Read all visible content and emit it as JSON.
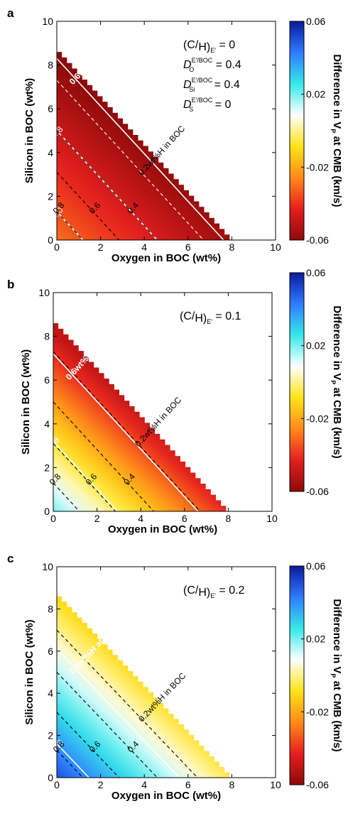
{
  "chart_data": [
    {
      "type": "heatmap",
      "panel_label": "a",
      "xlabel": "Oxygen in BOC (wt%)",
      "ylabel": "Silicon in BOC (wt%)",
      "xlim": [
        0,
        10
      ],
      "ylim": [
        0,
        10
      ],
      "x_ticks": [
        "0",
        "2",
        "4",
        "6",
        "8",
        "10"
      ],
      "y_ticks": [
        "0",
        "2",
        "4",
        "6",
        "8",
        "10"
      ],
      "colorbar": {
        "label": "Difference in Vp at CMB (km/s)",
        "label_main": "Difference in V",
        "label_sub": "P",
        "label_tail": " at CMB (km/s)",
        "range": [
          -0.06,
          0.06
        ],
        "ticks": [
          "0.06",
          "0.02",
          "-0.02",
          "-0.06"
        ],
        "colors": [
          "#0a1a9c",
          "#2f7bff",
          "#36e8e8",
          "#ffffff",
          "#ffe31a",
          "#ff8a1a",
          "#e61e1e",
          "#8c0a0a"
        ]
      },
      "region_boundary": {
        "si_at_o0": 8.6,
        "o_at_si0": 7.9
      },
      "conditions": [
        "(C/H)E' = 0",
        "D O E'/BOC = 0.4",
        "D Si E'/BOC = 0.4",
        "D S E'/BOC = 0"
      ],
      "conditions_text": {
        "ratio_value": " = 0",
        "do_value": " = 0.4",
        "dsi_value": " = 0.4",
        "ds_value": " = 0"
      },
      "contours_white": [
        {
          "label": "0.6wt%H at CMB",
          "si0": 8.3
        },
        {
          "label": "0.8",
          "si0": 5.0
        },
        {
          "label": "1.0",
          "si0": 1.3
        }
      ],
      "contours_black": [
        {
          "label": "0.2wt%H in BOC",
          "si0": 7.3
        },
        {
          "label": "0.4",
          "si0": 5.0
        },
        {
          "label": "0.6",
          "si0": 3.1
        },
        {
          "label": "0.8",
          "si0": 1.3
        }
      ],
      "corner_value_at_origin": -0.03,
      "edge_value": -0.06
    },
    {
      "type": "heatmap",
      "panel_label": "b",
      "xlabel": "Oxygen in BOC (wt%)",
      "ylabel": "Silicon in BOC (wt%)",
      "xlim": [
        0,
        10
      ],
      "ylim": [
        0,
        10
      ],
      "x_ticks": [
        "0",
        "2",
        "4",
        "6",
        "8",
        "10"
      ],
      "y_ticks": [
        "0",
        "2",
        "4",
        "6",
        "8",
        "10"
      ],
      "colorbar": {
        "label": "Difference in Vp at CMB (km/s)",
        "label_main": "Difference in V",
        "label_sub": "P",
        "label_tail": " at CMB (km/s)",
        "range": [
          -0.06,
          0.06
        ],
        "ticks": [
          "0.06",
          "0.02",
          "-0.02",
          "-0.06"
        ],
        "colors": [
          "#0a1a9c",
          "#2f7bff",
          "#36e8e8",
          "#ffffff",
          "#ffe31a",
          "#ff8a1a",
          "#e61e1e",
          "#8c0a0a"
        ]
      },
      "region_boundary": {
        "si_at_o0": 8.6,
        "o_at_si0": 7.9
      },
      "conditions": [
        "(C/H)E' = 0.1"
      ],
      "conditions_text": {
        "ratio_value": " = 0.1"
      },
      "contours_white": [
        {
          "label": "0.6wt%H at CMB",
          "si0": 7.2
        },
        {
          "label": "0.8",
          "si0": 3.2
        }
      ],
      "contours_black": [
        {
          "label": "0.2wt%H in BOC",
          "si0": 7.3
        },
        {
          "label": "0.4",
          "si0": 5.0
        },
        {
          "label": "0.6",
          "si0": 3.1
        },
        {
          "label": "0.8",
          "si0": 1.3
        }
      ],
      "corner_value_at_origin": 0.02,
      "edge_value": -0.05
    },
    {
      "type": "heatmap",
      "panel_label": "c",
      "xlabel": "Oxygen in BOC (wt%)",
      "ylabel": "Silicon in BOC (wt%)",
      "xlim": [
        0,
        10
      ],
      "ylim": [
        0,
        10
      ],
      "x_ticks": [
        "0",
        "2",
        "4",
        "6",
        "8",
        "10"
      ],
      "y_ticks": [
        "0",
        "2",
        "4",
        "6",
        "8",
        "10"
      ],
      "colorbar": {
        "label": "Difference in Vp at CMB (km/s)",
        "label_main": "Difference in V",
        "label_sub": "P",
        "label_tail": " at CMB (km/s)",
        "range": [
          -0.06,
          0.06
        ],
        "ticks": [
          "0.06",
          "0.02",
          "-0.02",
          "-0.06"
        ],
        "colors": [
          "#0a1a9c",
          "#2f7bff",
          "#36e8e8",
          "#ffffff",
          "#ffe31a",
          "#ff8a1a",
          "#e61e1e",
          "#8c0a0a"
        ]
      },
      "region_boundary": {
        "si_at_o0": 8.6,
        "o_at_si0": 7.9
      },
      "conditions": [
        "(C/H)E' = 0.2"
      ],
      "conditions_text": {
        "ratio_value": " = 0.2"
      },
      "contours_white": [
        {
          "label": "0.6wt%H at CMB",
          "si0": 6.1
        },
        {
          "label": "0.8",
          "si0": 1.6
        }
      ],
      "contours_black": [
        {
          "label": "0.2wt%H in BOC",
          "si0": 7.0
        },
        {
          "label": "0.4",
          "si0": 5.0
        },
        {
          "label": "0.6",
          "si0": 3.1
        },
        {
          "label": "0.8",
          "si0": 1.3
        }
      ],
      "corner_value_at_origin": 0.05,
      "edge_value": -0.01
    }
  ]
}
